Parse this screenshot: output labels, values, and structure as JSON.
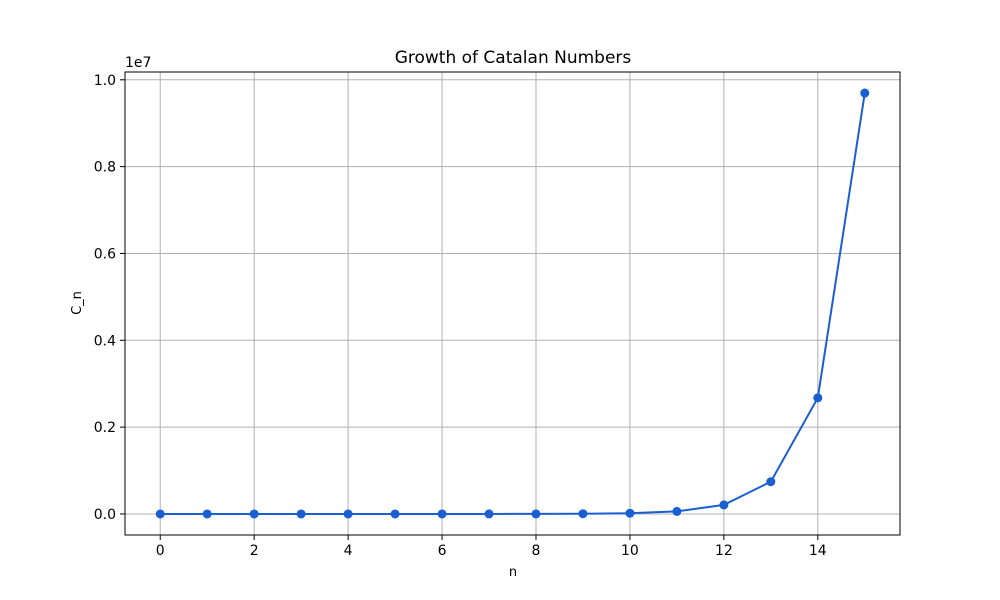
{
  "chart_data": {
    "type": "line",
    "title": "Growth of Catalan Numbers",
    "xlabel": "n",
    "ylabel": "C_n",
    "y_offset_label": "1e7",
    "y_scale_factor": 10000000,
    "x": [
      0,
      1,
      2,
      3,
      4,
      5,
      6,
      7,
      8,
      9,
      10,
      11,
      12,
      13,
      14,
      15
    ],
    "series": [
      {
        "values": [
          1,
          1,
          2,
          5,
          14,
          42,
          132,
          429,
          1430,
          4862,
          16796,
          58786,
          208012,
          742900,
          2674440,
          9694845
        ],
        "color": "#1a5fd1",
        "marker": "circle"
      }
    ],
    "xlim": [
      -0.75,
      15.75
    ],
    "ylim": [
      -484741,
      10179586
    ],
    "xticks": [
      0,
      2,
      4,
      6,
      8,
      10,
      12,
      14
    ],
    "xtick_labels": [
      "0",
      "2",
      "4",
      "6",
      "8",
      "10",
      "12",
      "14"
    ],
    "yticks": [
      0,
      2000000,
      4000000,
      6000000,
      8000000,
      10000000
    ],
    "ytick_labels": [
      "0.0",
      "0.2",
      "0.4",
      "0.6",
      "0.8",
      "1.0"
    ],
    "grid": true
  }
}
